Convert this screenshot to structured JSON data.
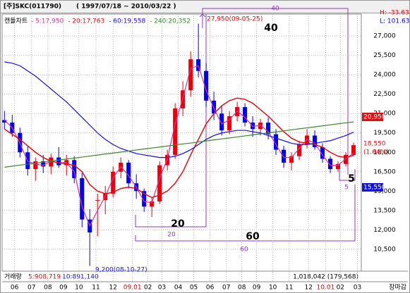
{
  "chart_data": {
    "type": "candlestick",
    "title": "[주]SKC(011790)",
    "subtitle": "( 1997/07/18 ~ 2010/03/22 )",
    "chart_label": "캔들차트",
    "h_label": "H: -33.63",
    "l_label": "L: 101.63",
    "open": [
      20500,
      20300,
      19500,
      18000,
      16700,
      17300,
      16900,
      17600,
      17000,
      17400,
      16000,
      12800,
      14300,
      14300,
      14800,
      16500,
      17200,
      15600,
      15000,
      13800,
      14200,
      17000,
      17800,
      21400,
      22800,
      25200,
      24300,
      22000,
      21000,
      19700,
      20800,
      21500,
      20300,
      19800,
      20300,
      19400,
      18200,
      17200,
      17700,
      18600,
      19300,
      18400,
      17500,
      16700,
      17100,
      17800
    ],
    "high": [
      21200,
      20900,
      19900,
      18500,
      17600,
      17800,
      17900,
      18400,
      17800,
      17700,
      16400,
      13600,
      14800,
      15400,
      16900,
      17600,
      17400,
      16300,
      15200,
      14500,
      17300,
      18200,
      21800,
      23500,
      25800,
      27950,
      24900,
      22700,
      21600,
      21200,
      21900,
      21800,
      20800,
      20600,
      20700,
      19800,
      18500,
      18000,
      18900,
      19800,
      19700,
      18700,
      17700,
      17300,
      18000,
      18750
    ],
    "low": [
      19800,
      19200,
      17600,
      16200,
      15800,
      16400,
      16300,
      16800,
      16200,
      15600,
      12200,
      9200,
      11500,
      13200,
      14500,
      16000,
      15200,
      14400,
      13400,
      13000,
      14000,
      16600,
      17500,
      20800,
      22300,
      23800,
      21500,
      20500,
      19300,
      19400,
      20400,
      20000,
      19200,
      19300,
      19000,
      17800,
      16800,
      16600,
      17400,
      18300,
      18200,
      17200,
      16400,
      16500,
      16900,
      17700
    ],
    "close": [
      20300,
      19500,
      18000,
      16700,
      17300,
      16900,
      17600,
      17000,
      17400,
      16000,
      12800,
      11800,
      14300,
      14800,
      16500,
      17200,
      15600,
      15000,
      13800,
      14200,
      17000,
      17800,
      21400,
      22800,
      25200,
      24300,
      22000,
      21000,
      19700,
      20800,
      21500,
      20300,
      19800,
      20300,
      19400,
      18200,
      17200,
      17700,
      18600,
      19300,
      18400,
      17500,
      16700,
      17100,
      17800,
      18550
    ],
    "up_color": "#e8000b",
    "down_color": "#0000ee",
    "series": [
      {
        "name": "5:17,950",
        "color": "#e0309a",
        "values": [
          20500,
          19900,
          18700,
          17300,
          17100,
          17000,
          17300,
          17200,
          17200,
          16500,
          13800,
          12300,
          13500,
          14600,
          16000,
          16900,
          16200,
          15300,
          14200,
          14100,
          16000,
          17500,
          20200,
          22200,
          24500,
          24700,
          22800,
          21400,
          20200,
          20500,
          21200,
          20700,
          20000,
          20100,
          19600,
          18600,
          17600,
          17600,
          18300,
          19000,
          18700,
          17800,
          17000,
          17000,
          17500,
          17950
        ]
      },
      {
        "name": "20:17,763",
        "color": "#e01010",
        "values": [
          19800,
          19400,
          19000,
          18500,
          18000,
          17600,
          17300,
          17200,
          17100,
          17000,
          16500,
          15500,
          15000,
          14800,
          14900,
          15200,
          15300,
          15200,
          14800,
          14500,
          14700,
          15000,
          15600,
          16500,
          17800,
          19000,
          20200,
          21000,
          21600,
          22000,
          22200,
          22100,
          21800,
          21300,
          20800,
          20200,
          19600,
          19100,
          18800,
          18700,
          18600,
          18400,
          18000,
          17700,
          17600,
          17763
        ]
      },
      {
        "name": "60:19,558",
        "color": "#1010e0",
        "values": [
          25000,
          24900,
          24700,
          24300,
          23900,
          23400,
          22900,
          22400,
          21900,
          21300,
          20700,
          20100,
          19500,
          19000,
          18600,
          18300,
          18100,
          17900,
          17800,
          17700,
          17600,
          17600,
          17700,
          17900,
          18200,
          18600,
          19000,
          19300,
          19500,
          19600,
          19700,
          19700,
          19600,
          19500,
          19300,
          19100,
          18900,
          18700,
          18600,
          18600,
          18700,
          18800,
          18900,
          19100,
          19300,
          19558
        ]
      },
      {
        "name": "240:20,352",
        "color": "#3a8a2a",
        "values": [
          16850,
          16930,
          17010,
          17080,
          17160,
          17240,
          17320,
          17400,
          17480,
          17550,
          17630,
          17710,
          17790,
          17870,
          17940,
          18020,
          18100,
          18180,
          18260,
          18330,
          18410,
          18490,
          18570,
          18650,
          18720,
          18800,
          18880,
          18960,
          19040,
          19110,
          19190,
          19270,
          19350,
          19430,
          19500,
          19580,
          19660,
          19740,
          19820,
          19890,
          19970,
          20050,
          20130,
          20210,
          20280,
          20352
        ]
      }
    ],
    "xlim": [
      -0.3,
      46
    ],
    "xticks": [
      {
        "value": 1.3,
        "label": "06"
      },
      {
        "value": 3.5,
        "label": "07"
      },
      {
        "value": 5.6,
        "label": "08"
      },
      {
        "value": 7.6,
        "label": "09"
      },
      {
        "value": 9.6,
        "label": "10"
      },
      {
        "value": 11.8,
        "label": "11"
      },
      {
        "value": 14,
        "label": "12"
      },
      {
        "value": 16.5,
        "label": "09.01"
      },
      {
        "value": 18.5,
        "label": "02"
      },
      {
        "value": 20.3,
        "label": "03"
      },
      {
        "value": 22.4,
        "label": "04"
      },
      {
        "value": 24.4,
        "label": "05"
      },
      {
        "value": 26.5,
        "label": "06"
      },
      {
        "value": 28.6,
        "label": "07"
      },
      {
        "value": 30.6,
        "label": "08"
      },
      {
        "value": 32.5,
        "label": "09"
      },
      {
        "value": 34.6,
        "label": "10"
      },
      {
        "value": 36.7,
        "label": "11"
      },
      {
        "value": 39.2,
        "label": "12"
      },
      {
        "value": 41.4,
        "label": "10.01"
      },
      {
        "value": 43.3,
        "label": "02"
      },
      {
        "value": 45.5,
        "label": "03"
      }
    ],
    "ylim": [
      8800,
      28700
    ],
    "yticks": [
      {
        "value": 10500,
        "label": "10,500"
      },
      {
        "value": 12000,
        "label": "12,000"
      },
      {
        "value": 13500,
        "label": "13,500"
      },
      {
        "value": 15000,
        "label": "15,000"
      },
      {
        "value": 16500,
        "label": "16,500"
      },
      {
        "value": 18000,
        "label": "18,000"
      },
      {
        "value": 19500,
        "label": "19,500"
      },
      {
        "value": 21000,
        "label": "21,000"
      },
      {
        "value": 22500,
        "label": "22,500"
      },
      {
        "value": 24000,
        "label": "24,000"
      },
      {
        "value": 25500,
        "label": "25,500"
      },
      {
        "value": 27000,
        "label": "27,000"
      }
    ],
    "grid": true,
    "annotations": {
      "peak": "27,950(09-05-25)",
      "trough": "9,200(08-10-27)",
      "c40": "40",
      "c40s": "40",
      "c20": "20",
      "c20s": "20",
      "c60": "60",
      "c60s": "60",
      "c5": "5",
      "c5s": "5"
    },
    "price_labels": {
      "red_box": "20,950",
      "last": "18,550",
      "change": "(1.64%)",
      "blue_box": "15,550"
    },
    "volume": {
      "label": "거래량",
      "ma5": "5:908,719",
      "ma10": "10:891,140",
      "last": "1,018,042 (179,568)"
    },
    "status": "장마감"
  }
}
